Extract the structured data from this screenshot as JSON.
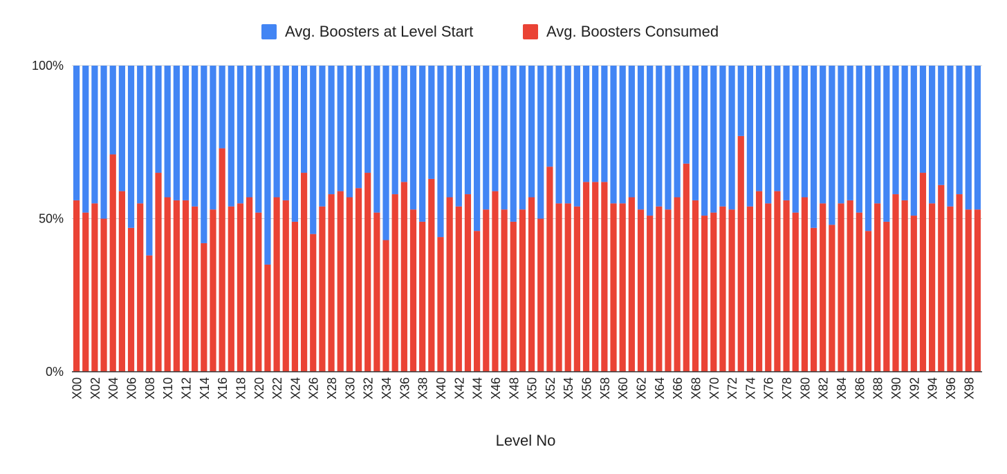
{
  "chart_data": {
    "type": "bar",
    "stacked": "percent",
    "title": "",
    "xlabel": "Level No",
    "ylabel": "",
    "ylim": [
      0,
      100
    ],
    "yticks": [
      "0%",
      "50%",
      "100%"
    ],
    "grid": true,
    "legend_position": "top",
    "colors": {
      "start": "#4285f4",
      "consumed": "#ea4335",
      "grid": "#cccccc",
      "axis": "#333333"
    },
    "categories": [
      "X00",
      "X01",
      "X02",
      "X03",
      "X04",
      "X05",
      "X06",
      "X07",
      "X08",
      "X09",
      "X10",
      "X11",
      "X12",
      "X13",
      "X14",
      "X15",
      "X16",
      "X17",
      "X18",
      "X19",
      "X20",
      "X21",
      "X22",
      "X23",
      "X24",
      "X25",
      "X26",
      "X27",
      "X28",
      "X29",
      "X30",
      "X31",
      "X32",
      "X33",
      "X34",
      "X35",
      "X36",
      "X37",
      "X38",
      "X39",
      "X40",
      "X41",
      "X42",
      "X43",
      "X44",
      "X45",
      "X46",
      "X47",
      "X48",
      "X49",
      "X50",
      "X51",
      "X52",
      "X53",
      "X54",
      "X55",
      "X56",
      "X57",
      "X58",
      "X59",
      "X60",
      "X61",
      "X62",
      "X63",
      "X64",
      "X65",
      "X66",
      "X67",
      "X68",
      "X69",
      "X70",
      "X71",
      "X72",
      "X73",
      "X74",
      "X75",
      "X76",
      "X77",
      "X78",
      "X79",
      "X80",
      "X81",
      "X82",
      "X83",
      "X84",
      "X85",
      "X86",
      "X87",
      "X88",
      "X89",
      "X90",
      "X91",
      "X92",
      "X93",
      "X94",
      "X95",
      "X96",
      "X97",
      "X98",
      "X99"
    ],
    "series": [
      {
        "name": "Avg. Boosters at Level Start",
        "color": "#4285f4",
        "values": [
          44,
          48,
          45,
          50,
          29,
          41,
          53,
          45,
          62,
          35,
          43,
          44,
          44,
          46,
          58,
          47,
          27,
          46,
          45,
          43,
          48,
          65,
          43,
          44,
          51,
          35,
          55,
          46,
          42,
          41,
          43,
          40,
          35,
          48,
          57,
          42,
          38,
          47,
          51,
          37,
          56,
          43,
          46,
          42,
          54,
          47,
          41,
          47,
          51,
          47,
          43,
          50,
          33,
          45,
          45,
          46,
          38,
          38,
          38,
          45,
          45,
          43,
          47,
          49,
          46,
          47,
          43,
          32,
          44,
          49,
          48,
          46,
          47,
          23,
          46,
          41,
          45,
          41,
          44,
          48,
          43,
          53,
          45,
          52,
          45,
          44,
          48,
          54,
          45,
          51,
          42,
          44,
          49,
          35,
          45,
          39,
          46,
          42,
          47,
          47
        ]
      },
      {
        "name": "Avg. Boosters Consumed",
        "color": "#ea4335",
        "values": [
          56,
          52,
          55,
          50,
          71,
          59,
          47,
          55,
          38,
          65,
          57,
          56,
          56,
          54,
          42,
          53,
          73,
          54,
          55,
          57,
          52,
          35,
          57,
          56,
          49,
          65,
          45,
          54,
          58,
          59,
          57,
          60,
          65,
          52,
          43,
          58,
          62,
          53,
          49,
          63,
          44,
          57,
          54,
          58,
          46,
          53,
          59,
          53,
          49,
          53,
          57,
          50,
          67,
          55,
          55,
          54,
          62,
          62,
          62,
          55,
          55,
          57,
          53,
          51,
          54,
          53,
          57,
          68,
          56,
          51,
          52,
          54,
          53,
          77,
          54,
          59,
          55,
          59,
          56,
          52,
          57,
          47,
          55,
          48,
          55,
          56,
          52,
          46,
          55,
          49,
          58,
          56,
          51,
          65,
          55,
          61,
          54,
          58,
          53,
          53
        ]
      }
    ]
  }
}
